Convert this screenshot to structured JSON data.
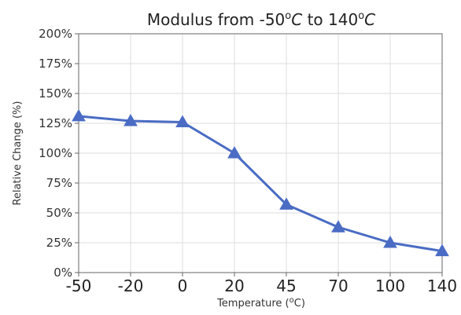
{
  "chart_data": {
    "type": "line",
    "title": "Modulus from -50°C to 140°C",
    "title_parts": {
      "prefix": "Modulus from -50",
      "sup1": "o",
      "unit1": "C",
      "mid": " to 140",
      "sup2": "o",
      "unit2": "C"
    },
    "xlabel": "Temperature (°C)",
    "xlabel_parts": {
      "prefix": "Temperature (",
      "sup": "o",
      "suffix": "C)"
    },
    "ylabel": "Relative Change (%)",
    "categories": [
      "-50",
      "-20",
      "0",
      "20",
      "45",
      "70",
      "100",
      "140"
    ],
    "series": [
      {
        "values": [
          131,
          127,
          126,
          100,
          57,
          38,
          25,
          18
        ]
      }
    ],
    "ylim": [
      0,
      200
    ],
    "yticks": [
      0,
      25,
      50,
      75,
      100,
      125,
      150,
      175,
      200
    ],
    "ytick_labels": [
      "0%",
      "25%",
      "50%",
      "75%",
      "100%",
      "125%",
      "150%",
      "175%",
      "200%"
    ],
    "marker": "triangle",
    "grid": true,
    "line_color": "#4a6cc4",
    "grid_color": "#dddddd"
  }
}
